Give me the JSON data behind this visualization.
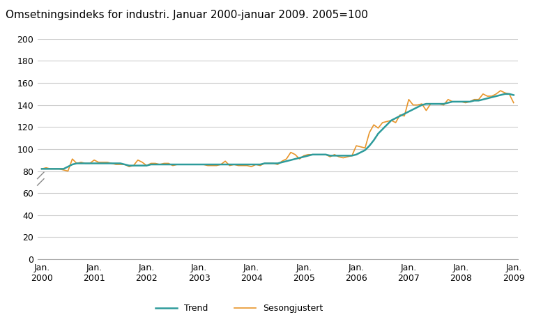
{
  "title": "Omsetningsindeks for industri. Januar 2000-januar 2009. 2005=100",
  "title_fontsize": 11,
  "trend_color": "#2D9B9B",
  "seasonal_color": "#E8952A",
  "trend_label": "Trend",
  "seasonal_label": "Sesongjustert",
  "ylim": [
    0,
    200
  ],
  "yticks": [
    0,
    20,
    40,
    60,
    80,
    100,
    120,
    140,
    160,
    180,
    200
  ],
  "background_color": "#ffffff",
  "grid_color": "#cccccc",
  "tick_label_fontsize": 9,
  "legend_fontsize": 9,
  "trend": [
    82,
    82,
    82,
    82,
    82,
    82,
    84,
    86,
    87,
    87,
    87,
    87,
    87,
    87,
    87,
    87,
    87,
    87,
    87,
    86,
    85,
    85,
    85,
    85,
    85,
    86,
    86,
    86,
    86,
    86,
    86,
    86,
    86,
    86,
    86,
    86,
    86,
    86,
    86,
    86,
    86,
    86,
    86,
    86,
    86,
    86,
    86,
    86,
    86,
    86,
    86,
    87,
    87,
    87,
    87,
    88,
    89,
    90,
    91,
    92,
    93,
    94,
    95,
    95,
    95,
    95,
    94,
    94,
    94,
    94,
    94,
    94,
    95,
    97,
    99,
    103,
    108,
    114,
    118,
    122,
    126,
    128,
    130,
    132,
    134,
    136,
    138,
    140,
    141,
    141,
    141,
    141,
    141,
    142,
    143,
    143,
    143,
    143,
    143,
    144,
    144,
    145,
    146,
    147,
    148,
    149,
    150,
    150,
    149
  ],
  "seasonal": [
    82,
    83,
    82,
    82,
    82,
    81,
    80,
    91,
    87,
    88,
    87,
    87,
    90,
    88,
    88,
    88,
    87,
    86,
    86,
    86,
    84,
    85,
    90,
    88,
    85,
    87,
    87,
    86,
    87,
    87,
    85,
    86,
    86,
    86,
    86,
    86,
    86,
    86,
    85,
    85,
    85,
    86,
    89,
    85,
    86,
    85,
    85,
    85,
    84,
    86,
    85,
    87,
    87,
    87,
    86,
    89,
    91,
    97,
    95,
    91,
    94,
    95,
    95,
    95,
    95,
    95,
    93,
    95,
    93,
    92,
    93,
    94,
    103,
    102,
    101,
    115,
    122,
    119,
    124,
    125,
    126,
    124,
    131,
    130,
    145,
    140,
    140,
    141,
    135,
    141,
    141,
    141,
    140,
    145,
    143,
    143,
    143,
    142,
    143,
    145,
    145,
    150,
    148,
    148,
    150,
    153,
    151,
    150,
    142
  ],
  "xtick_positions": [
    0,
    12,
    24,
    36,
    48,
    60,
    72,
    84,
    96,
    108
  ],
  "xtick_labels": [
    "Jan.\n2000",
    "Jan.\n2001",
    "Jan.\n2002",
    "Jan.\n2003",
    "Jan.\n2004",
    "Jan.\n2005",
    "Jan.\n2006",
    "Jan.\n2007",
    "Jan.\n2008",
    "Jan.\n2009"
  ]
}
